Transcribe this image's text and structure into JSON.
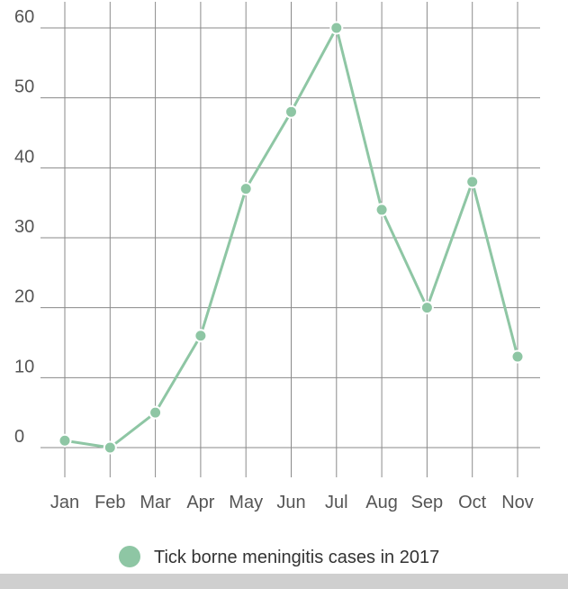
{
  "chart_data": {
    "type": "line",
    "categories": [
      "Jan",
      "Feb",
      "Mar",
      "Apr",
      "May",
      "Jun",
      "Jul",
      "Aug",
      "Sep",
      "Oct",
      "Nov"
    ],
    "series": [
      {
        "name": "Tick borne meningitis cases in 2017",
        "values": [
          1,
          0,
          5,
          16,
          37,
          48,
          60,
          34,
          20,
          38,
          13
        ]
      }
    ],
    "y_ticks": [
      "0",
      "10",
      "20",
      "30",
      "40",
      "50",
      "60"
    ],
    "ylim": [
      0,
      60
    ],
    "grid": true,
    "legend_position": "bottom",
    "colors": {
      "series": "#8ec6a4",
      "grid": "#8a8a8a",
      "axis_text": "#555555"
    }
  }
}
